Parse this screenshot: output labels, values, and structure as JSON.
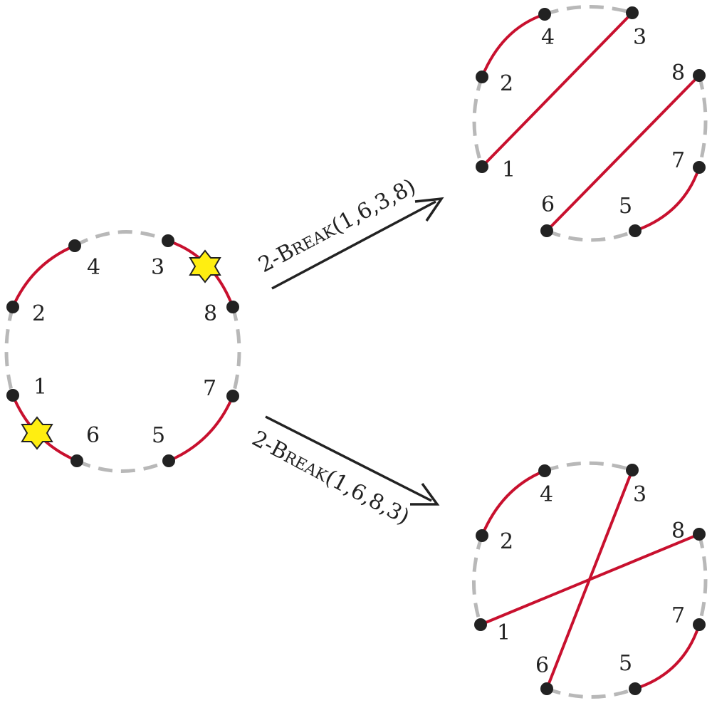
{
  "colors": {
    "red_edge": "#c8102e",
    "gray_edge": "#b8b8b8",
    "node": "#222222",
    "star_fill": "#ffee11",
    "star_stroke": "#222222",
    "arrow": "#222222"
  },
  "operations": [
    {
      "prefix": "2-B",
      "smallcaps": "REAK",
      "args": "(1,6,3,8)"
    },
    {
      "prefix": "2-B",
      "smallcaps": "REAK",
      "args": "(1,6,8,3)"
    }
  ],
  "genomes": {
    "original": {
      "labels": [
        "4",
        "3",
        "2",
        "8",
        "1",
        "7",
        "6",
        "5"
      ],
      "break_marker_icon": "star-icon"
    },
    "result_top": {
      "labels": [
        "4",
        "3",
        "2",
        "8",
        "1",
        "7",
        "6",
        "5"
      ]
    },
    "result_bottom": {
      "labels": [
        "4",
        "3",
        "2",
        "8",
        "1",
        "7",
        "6",
        "5"
      ]
    }
  }
}
